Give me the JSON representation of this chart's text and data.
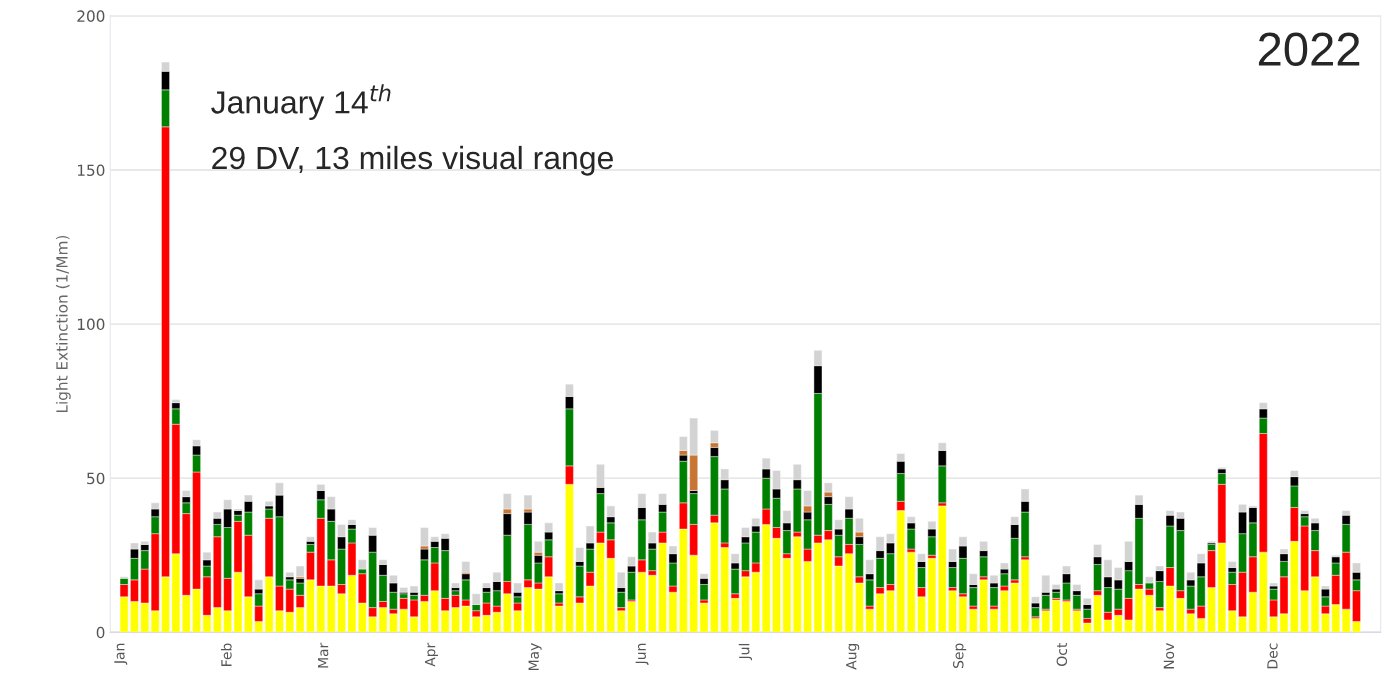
{
  "chart_data": {
    "type": "bar",
    "stacked": true,
    "title": "2022",
    "ylabel": "Light Extinction (1/Mm)",
    "annotations": [
      "January 14$^{th}$",
      "29 DV, 13 miles visual range"
    ],
    "x": [
      "2022-01-02",
      "2022-01-05",
      "2022-01-08",
      "2022-01-11",
      "2022-01-14",
      "2022-01-17",
      "2022-01-20",
      "2022-01-23",
      "2022-01-26",
      "2022-01-29",
      "2022-02-01",
      "2022-02-04",
      "2022-02-07",
      "2022-02-10",
      "2022-02-13",
      "2022-02-16",
      "2022-02-19",
      "2022-02-22",
      "2022-02-25",
      "2022-02-28",
      "2022-03-03",
      "2022-03-06",
      "2022-03-09",
      "2022-03-12",
      "2022-03-15",
      "2022-03-18",
      "2022-03-21",
      "2022-03-24",
      "2022-03-27",
      "2022-03-30",
      "2022-04-02",
      "2022-04-05",
      "2022-04-08",
      "2022-04-11",
      "2022-04-14",
      "2022-04-17",
      "2022-04-20",
      "2022-04-23",
      "2022-04-26",
      "2022-04-29",
      "2022-05-02",
      "2022-05-05",
      "2022-05-08",
      "2022-05-11",
      "2022-05-14",
      "2022-05-17",
      "2022-05-20",
      "2022-05-23",
      "2022-05-26",
      "2022-05-29",
      "2022-06-01",
      "2022-06-04",
      "2022-06-07",
      "2022-06-10",
      "2022-06-13",
      "2022-06-16",
      "2022-06-19",
      "2022-06-22",
      "2022-06-25",
      "2022-06-28",
      "2022-07-01",
      "2022-07-04",
      "2022-07-07",
      "2022-07-10",
      "2022-07-13",
      "2022-07-16",
      "2022-07-19",
      "2022-07-22",
      "2022-07-25",
      "2022-07-28",
      "2022-07-31",
      "2022-08-03",
      "2022-08-06",
      "2022-08-09",
      "2022-08-12",
      "2022-08-15",
      "2022-08-18",
      "2022-08-21",
      "2022-08-24",
      "2022-08-27",
      "2022-08-30",
      "2022-09-02",
      "2022-09-05",
      "2022-09-08",
      "2022-09-11",
      "2022-09-14",
      "2022-09-17",
      "2022-09-20",
      "2022-09-23",
      "2022-09-26",
      "2022-09-29",
      "2022-10-02",
      "2022-10-05",
      "2022-10-08",
      "2022-10-11",
      "2022-10-14",
      "2022-10-17",
      "2022-10-20",
      "2022-10-23",
      "2022-10-26",
      "2022-10-29",
      "2022-11-01",
      "2022-11-04",
      "2022-11-07",
      "2022-11-10",
      "2022-11-13",
      "2022-11-16",
      "2022-11-19",
      "2022-11-22",
      "2022-11-25",
      "2022-11-28",
      "2022-12-01",
      "2022-12-04",
      "2022-12-07",
      "2022-12-10",
      "2022-12-13",
      "2022-12-16",
      "2022-12-19",
      "2022-12-22",
      "2022-12-25"
    ],
    "series": [
      {
        "color": "#ffff00",
        "values": [
          11.5,
          10,
          9.5,
          7,
          18,
          25.5,
          12,
          14,
          5.5,
          8,
          7,
          19.5,
          11.5,
          3.5,
          18,
          7,
          6.5,
          8,
          17,
          15,
          15,
          12.5,
          18.5,
          9.5,
          5,
          8,
          6,
          7.5,
          5,
          10,
          13.5,
          7,
          8,
          8.5,
          5,
          5.5,
          6.5,
          12.5,
          7,
          14.5,
          14,
          18,
          8.5,
          48,
          9.5,
          15,
          29,
          24,
          7,
          10,
          19.5,
          18.5,
          29,
          13,
          33.5,
          25,
          9.5,
          35.5,
          27.5,
          11,
          18,
          19.5,
          35,
          30.5,
          24,
          31,
          23,
          29,
          30,
          21.5,
          25.5,
          16,
          7.5,
          12.5,
          13.5,
          39.5,
          26,
          11.5,
          24,
          41,
          13.5,
          11.5,
          7.5,
          17,
          7.5,
          13.5,
          16,
          23.5,
          4.5,
          7,
          10.5,
          10,
          7,
          3,
          12,
          4,
          5.5,
          4,
          14,
          12,
          7,
          15,
          11,
          6,
          4.5,
          14.5,
          29,
          7,
          5,
          13,
          26,
          5,
          6,
          29.5,
          13.5,
          18,
          6,
          9,
          7.5,
          3.5
        ]
      },
      {
        "color": "#ff0000",
        "values": [
          4,
          7,
          11,
          25,
          146,
          42,
          26.5,
          38,
          12.5,
          23,
          10.5,
          16.5,
          20,
          5,
          19,
          8,
          7.5,
          4,
          9,
          22,
          8.5,
          3,
          10.5,
          9.5,
          3,
          2,
          1.5,
          3.5,
          5.5,
          2,
          9,
          4,
          4,
          2,
          2,
          4,
          2,
          4,
          2.5,
          2.5,
          2,
          6.5,
          1,
          6,
          2,
          4.5,
          3.5,
          6,
          1,
          0.5,
          4,
          1.5,
          3.5,
          2,
          8.5,
          10,
          1,
          2.5,
          1.5,
          1.5,
          2,
          3,
          5,
          3.5,
          1.5,
          1.5,
          4,
          2.5,
          3,
          3,
          3,
          2,
          1,
          2,
          2,
          3,
          1,
          3,
          1,
          1,
          1,
          1,
          1,
          1,
          1,
          1.5,
          1,
          1,
          0.5,
          0.5,
          0.5,
          0.5,
          0.5,
          1.5,
          1.5,
          2.5,
          2,
          7,
          1.5,
          2,
          1,
          6,
          2.5,
          1.5,
          4,
          12,
          19,
          8.5,
          14.5,
          11.5,
          38.5,
          5.5,
          12,
          11,
          21,
          8.5,
          2.5,
          9.5,
          18.5,
          10
        ]
      },
      {
        "color": "#008000",
        "values": [
          2,
          7,
          6,
          5.5,
          12,
          5,
          3.5,
          5.5,
          3.5,
          4,
          16.5,
          2,
          7.5,
          4,
          3,
          22.5,
          3,
          4,
          2.5,
          6,
          12.5,
          11.5,
          4.5,
          1.5,
          18,
          8.5,
          5.5,
          1.5,
          1.5,
          11.5,
          5,
          15.5,
          1.5,
          6.5,
          2,
          3.5,
          5,
          15,
          2,
          18,
          6.5,
          5.5,
          3,
          18.5,
          10,
          7.5,
          12.5,
          5.5,
          5,
          9,
          13,
          7,
          6.5,
          7.5,
          13.5,
          10,
          5,
          19,
          17.5,
          8,
          9,
          10,
          10,
          9.5,
          7.5,
          14,
          9.5,
          46,
          8.5,
          7,
          8.5,
          10.5,
          8.5,
          9.5,
          10,
          9,
          6.5,
          6.5,
          6,
          12,
          6.5,
          11.5,
          6,
          6.5,
          6,
          4,
          13.5,
          14.5,
          3,
          4.5,
          2,
          5.5,
          4.5,
          3,
          8.5,
          8,
          6.5,
          9,
          21.5,
          2,
          8.5,
          13.5,
          19.5,
          7.5,
          9.5,
          2,
          3.5,
          4,
          12.5,
          11,
          5,
          3.5,
          5,
          7,
          3,
          6.5,
          3,
          4,
          9,
          3.5
        ]
      },
      {
        "color": "#000000",
        "values": [
          0,
          3,
          2,
          2.5,
          6,
          2,
          2,
          3,
          2,
          2,
          6,
          1.5,
          3.5,
          1.5,
          1,
          7,
          1,
          1.5,
          1,
          3,
          4,
          4,
          1.5,
          0,
          5.5,
          3.5,
          3,
          0.5,
          1,
          3.5,
          2,
          4,
          1,
          2,
          0,
          1.5,
          3,
          7,
          1.5,
          4,
          2.5,
          2.5,
          1,
          4,
          1.5,
          2,
          2,
          2,
          1.5,
          2,
          4,
          2,
          2.5,
          3,
          2,
          1,
          2,
          3,
          3,
          2,
          2,
          2,
          3,
          3,
          2.5,
          3,
          2.5,
          9,
          2.5,
          2,
          3,
          2.5,
          2,
          2.5,
          3.5,
          4,
          2,
          2,
          2.5,
          5,
          2,
          4,
          1,
          2,
          1.5,
          1.5,
          4.5,
          3.5,
          1.5,
          1,
          1,
          3,
          1.5,
          1.5,
          2.5,
          3.5,
          3,
          3,
          4.5,
          0,
          3.5,
          3.5,
          4,
          2,
          4.5,
          0.5,
          1.5,
          1.5,
          7,
          5,
          3,
          1,
          2.5,
          3,
          1,
          2.5,
          2.5,
          2,
          3,
          2.5
        ]
      },
      {
        "color": "#c87533",
        "values": [
          0,
          0,
          0,
          0,
          0,
          0,
          0,
          0,
          0,
          0,
          0,
          0,
          0,
          0,
          0,
          0,
          0,
          0.5,
          0,
          0,
          0,
          0,
          0,
          0,
          0,
          0,
          0,
          0,
          0,
          1,
          0,
          0,
          0,
          0.5,
          0,
          0,
          0,
          1.5,
          0,
          1,
          1,
          0,
          0,
          0,
          0,
          0,
          0,
          0,
          0,
          0,
          0,
          0,
          0,
          0,
          1.5,
          11.5,
          0,
          1.5,
          0,
          0,
          0,
          0,
          0,
          0,
          0,
          0,
          2,
          0,
          1.5,
          0,
          0,
          1.5,
          0,
          0,
          0,
          0,
          0,
          0,
          0,
          0,
          0,
          0,
          0,
          0,
          0,
          0,
          0,
          0,
          0,
          0,
          0,
          0,
          0,
          0,
          0,
          0,
          0,
          0,
          0,
          0,
          0,
          0,
          0,
          0,
          0,
          0,
          0,
          0,
          0,
          0,
          0,
          0,
          0,
          0,
          0,
          0,
          0,
          0,
          0,
          0
        ]
      },
      {
        "color": "#d3d3d3",
        "values": [
          0.5,
          2,
          1,
          2,
          3,
          1,
          2,
          2,
          2.5,
          2,
          3,
          0.5,
          2,
          3,
          1.5,
          4,
          1.5,
          3.5,
          1.5,
          2,
          4,
          4,
          1.5,
          3,
          2.5,
          1.5,
          2.5,
          1.5,
          2,
          6,
          1.5,
          1.5,
          1.5,
          3.5,
          3.5,
          1.5,
          3,
          5,
          3,
          4.5,
          3.5,
          3,
          2.5,
          4,
          4.5,
          5.5,
          7.5,
          3.5,
          5,
          3,
          4.5,
          3.5,
          3.5,
          2.5,
          4.5,
          12,
          1.5,
          4,
          3.5,
          3,
          3,
          2.5,
          3.5,
          6,
          4,
          5,
          5,
          5,
          3,
          3,
          4,
          4.5,
          4.5,
          4.5,
          3,
          2.5,
          2,
          2.5,
          2.5,
          2.5,
          4,
          3,
          3.5,
          3,
          2.5,
          2,
          2.5,
          4,
          2,
          5.5,
          1.5,
          2.5,
          2,
          2,
          4,
          5.5,
          4,
          6.5,
          3,
          2,
          1.5,
          1.5,
          2,
          2.5,
          3,
          0.5,
          0.5,
          2,
          2.5,
          0.5,
          2,
          1,
          1.5,
          2,
          1,
          1.5,
          1,
          0.5,
          1.5,
          3
        ]
      }
    ],
    "xlim": [
      "2021-12-29",
      "2023-01-01"
    ],
    "xticks": [
      {
        "value": "2022-01-01",
        "label": "Jan"
      },
      {
        "value": "2022-02-01",
        "label": "Feb"
      },
      {
        "value": "2022-03-01",
        "label": "Mar"
      },
      {
        "value": "2022-04-01",
        "label": "Apr"
      },
      {
        "value": "2022-05-01",
        "label": "May"
      },
      {
        "value": "2022-06-01",
        "label": "Jun"
      },
      {
        "value": "2022-07-01",
        "label": "Jul"
      },
      {
        "value": "2022-08-01",
        "label": "Aug"
      },
      {
        "value": "2022-09-01",
        "label": "Sep"
      },
      {
        "value": "2022-10-01",
        "label": "Oct"
      },
      {
        "value": "2022-11-01",
        "label": "Nov"
      },
      {
        "value": "2022-12-01",
        "label": "Dec"
      }
    ],
    "ylim": [
      0,
      200
    ],
    "yticks": [
      0,
      50,
      100,
      150,
      200
    ],
    "grid": "y"
  }
}
